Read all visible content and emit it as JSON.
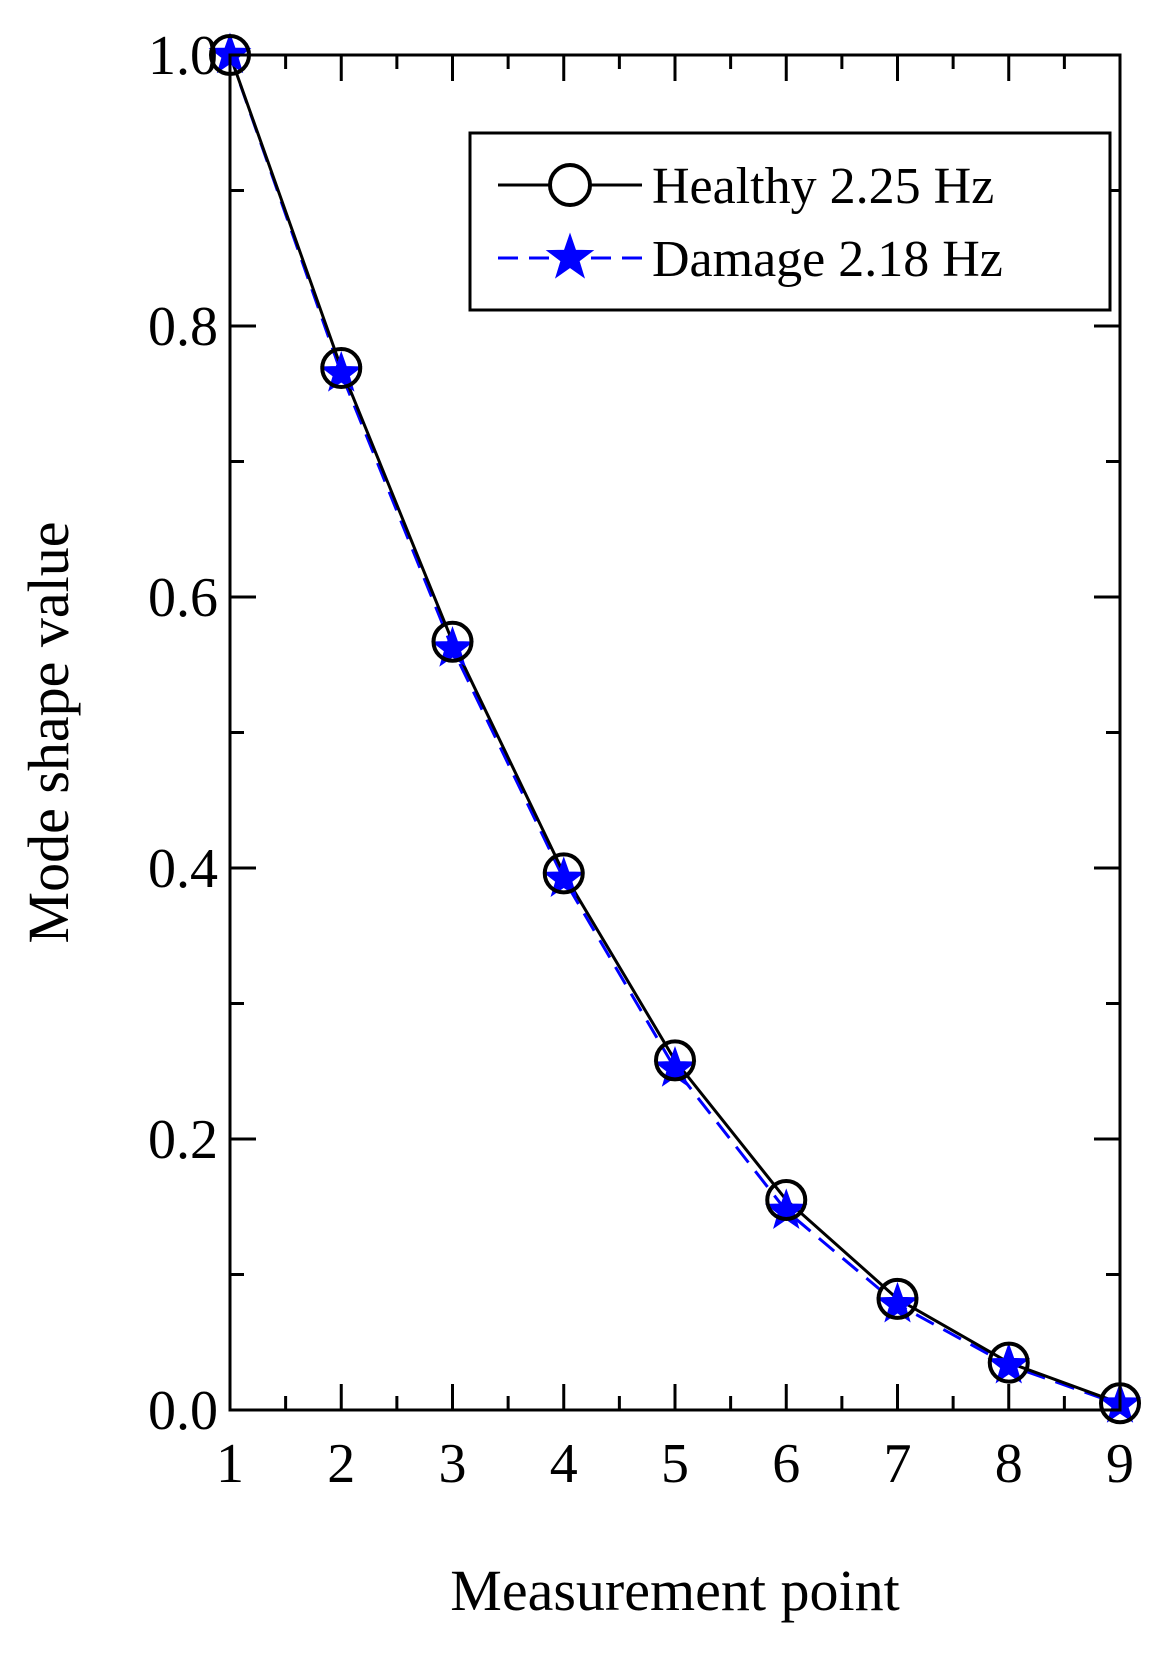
{
  "chart_data": {
    "type": "line",
    "title": "",
    "xlabel": "Measurement point",
    "ylabel": "Mode shape value",
    "xlim": [
      1,
      9
    ],
    "ylim": [
      0.0,
      1.0
    ],
    "x_ticks": [
      "1",
      "2",
      "3",
      "4",
      "5",
      "6",
      "7",
      "8",
      "9"
    ],
    "y_ticks": [
      "0.0",
      "0.2",
      "0.4",
      "0.6",
      "0.8",
      "1.0"
    ],
    "legend_position": "top-right",
    "grid": false,
    "x": [
      1,
      2,
      3,
      4,
      5,
      6,
      7,
      8,
      9
    ],
    "series": [
      {
        "name": "Healthy 2.25 Hz",
        "marker": "circle-open",
        "line": "solid",
        "color": "#000000",
        "values": [
          1.0,
          0.769,
          0.567,
          0.396,
          0.258,
          0.155,
          0.082,
          0.035,
          0.005
        ]
      },
      {
        "name": "Damage 2.18 Hz",
        "marker": "star",
        "line": "dashed",
        "color": "#0000ff",
        "values": [
          1.0,
          0.765,
          0.562,
          0.392,
          0.252,
          0.147,
          0.078,
          0.033,
          0.004
        ]
      }
    ]
  }
}
